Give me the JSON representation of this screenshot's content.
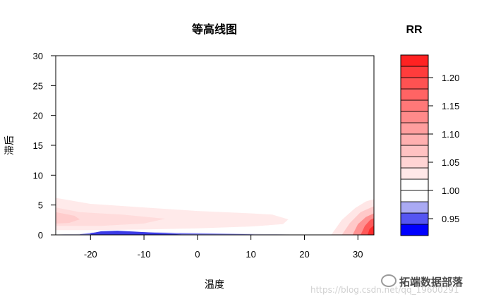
{
  "chart_data": {
    "type": "contour",
    "title": "等高线图",
    "xlabel": "温度",
    "ylabel": "滞后",
    "xlim": [
      -26.5,
      33
    ],
    "ylim": [
      0,
      30
    ],
    "x_ticks": [
      -20,
      -10,
      0,
      10,
      20,
      30
    ],
    "y_ticks": [
      0,
      5,
      10,
      15,
      20,
      25,
      30
    ],
    "legend": {
      "title": "RR",
      "range": [
        0.92,
        1.24
      ],
      "levels": [
        0.92,
        0.94,
        0.96,
        0.98,
        1.0,
        1.02,
        1.04,
        1.06,
        1.08,
        1.1,
        1.12,
        1.14,
        1.16,
        1.18,
        1.2,
        1.22,
        1.24
      ],
      "colors": [
        "#0000ff",
        "#5555f2",
        "#aaaaf4",
        "#ffffff",
        "#ffffff",
        "#ffe8e8",
        "#ffd4d4",
        "#ffc2c2",
        "#ffb0b0",
        "#ff9e9e",
        "#ff8a8a",
        "#ff7878",
        "#ff6464",
        "#ff5252",
        "#ff3c3c",
        "#ff2222"
      ],
      "tick_values": [
        0.95,
        1.0,
        1.05,
        1.1,
        1.15,
        1.2
      ],
      "tick_labels": [
        "0.95",
        "1.00",
        "1.05",
        "1.10",
        "1.15",
        "1.20"
      ]
    },
    "regions": [
      {
        "name": "cold-low-rr",
        "level": 0.98,
        "color": "#dcdcf8",
        "polygon": [
          [
            -26.5,
            0.05
          ],
          [
            -24,
            0.15
          ],
          [
            -20,
            0.25
          ],
          [
            -12,
            0.3
          ],
          [
            0,
            0.3
          ],
          [
            10,
            0.22
          ],
          [
            18,
            0.05
          ],
          [
            18,
            0
          ],
          [
            -26.5,
            0
          ]
        ]
      },
      {
        "name": "cold-low-rr",
        "level": 0.96,
        "color": "#8a8af0",
        "polygon": [
          [
            -22,
            0.1
          ],
          [
            -20,
            0.35
          ],
          [
            -16,
            0.55
          ],
          [
            -10,
            0.45
          ],
          [
            0,
            0.3
          ],
          [
            10,
            0.1
          ],
          [
            12,
            0
          ],
          [
            -22,
            0
          ]
        ]
      },
      {
        "name": "cold-low-rr",
        "level": 0.94,
        "color": "#3a3ae6",
        "polygon": [
          [
            -20,
            0.25
          ],
          [
            -18,
            0.6
          ],
          [
            -15,
            0.7
          ],
          [
            -12,
            0.55
          ],
          [
            -6,
            0.25
          ],
          [
            -2,
            0
          ],
          [
            -20,
            0
          ]
        ]
      },
      {
        "name": "cold-high-rr",
        "level": 1.02,
        "color": "#ffeaea",
        "polygon": [
          [
            -26.5,
            6.2
          ],
          [
            -20,
            5.2
          ],
          [
            -10,
            4.6
          ],
          [
            0,
            4.0
          ],
          [
            10,
            3.6
          ],
          [
            14,
            3.4
          ],
          [
            17,
            2.6
          ],
          [
            16,
            1.8
          ],
          [
            10,
            1.4
          ],
          [
            0,
            1.1
          ],
          [
            -10,
            0.9
          ],
          [
            -20,
            0.8
          ],
          [
            -26.5,
            0.8
          ]
        ]
      },
      {
        "name": "cold-high-rr",
        "level": 1.04,
        "color": "#ffdcdc",
        "polygon": [
          [
            -26.5,
            4.6
          ],
          [
            -22,
            3.8
          ],
          [
            -14,
            3.4
          ],
          [
            -6,
            2.7
          ],
          [
            -10,
            1.9
          ],
          [
            -18,
            1.5
          ],
          [
            -26.5,
            1.5
          ]
        ]
      },
      {
        "name": "cold-high-rr",
        "level": 1.06,
        "color": "#ffcccc",
        "polygon": [
          [
            -26.5,
            3.8
          ],
          [
            -23,
            3.2
          ],
          [
            -22,
            2.6
          ],
          [
            -24,
            2.0
          ],
          [
            -26.5,
            1.9
          ]
        ]
      },
      {
        "name": "heat-high-rr",
        "level": 1.02,
        "color": "#ffe6e6",
        "polygon": [
          [
            25,
            0
          ],
          [
            27,
            2.5
          ],
          [
            29.5,
            4.5
          ],
          [
            31.5,
            5.6
          ],
          [
            33,
            6.0
          ],
          [
            33,
            0
          ]
        ]
      },
      {
        "name": "heat-high-rr",
        "level": 1.06,
        "color": "#ffc8c8",
        "polygon": [
          [
            27,
            0
          ],
          [
            28.5,
            2.0
          ],
          [
            30.5,
            3.8
          ],
          [
            33,
            4.8
          ],
          [
            33,
            0
          ]
        ]
      },
      {
        "name": "heat-high-rr",
        "level": 1.12,
        "color": "#ff9090",
        "polygon": [
          [
            29,
            0
          ],
          [
            30,
            1.8
          ],
          [
            31.5,
            3.0
          ],
          [
            33,
            3.6
          ],
          [
            33,
            0
          ]
        ]
      },
      {
        "name": "heat-high-rr",
        "level": 1.18,
        "color": "#ff5858",
        "polygon": [
          [
            30.5,
            0
          ],
          [
            31.3,
            1.5
          ],
          [
            32.3,
            2.5
          ],
          [
            33,
            2.8
          ],
          [
            33,
            0
          ]
        ]
      },
      {
        "name": "heat-high-rr",
        "level": 1.22,
        "color": "#ff2a2a",
        "polygon": [
          [
            31.8,
            0
          ],
          [
            32.2,
            1.0
          ],
          [
            33,
            1.6
          ],
          [
            33,
            0
          ]
        ]
      }
    ],
    "grid": false
  },
  "watermark": {
    "brand": "拓端数据部落",
    "url": "https://blog.csdn.net/qq_19600291"
  }
}
